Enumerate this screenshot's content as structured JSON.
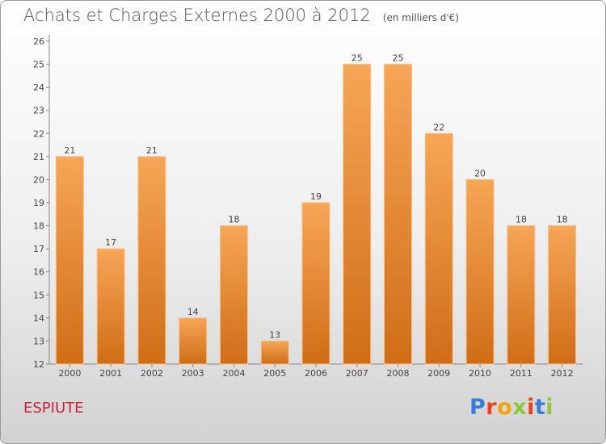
{
  "title": "Achats et Charges Externes 2000 à 2012",
  "subtitle": "(en milliers d'€)",
  "commune": "ESPIUTE",
  "logo": {
    "text": "Proxiti",
    "colors": [
      "#3a7dd6",
      "#e8431d",
      "#f2a400",
      "#8cc63f",
      "#e8431d",
      "#3a7dd6",
      "#8cc63f"
    ]
  },
  "colors": {
    "bar_top": "#f6a656",
    "bar_bottom": "#d06d16",
    "commune": "#c8203a"
  },
  "chart_data": {
    "type": "bar",
    "title": "Achats et Charges Externes 2000 à 2012",
    "subtitle": "(en milliers d'€)",
    "categories": [
      "2000",
      "2001",
      "2002",
      "2003",
      "2004",
      "2005",
      "2006",
      "2007",
      "2008",
      "2009",
      "2010",
      "2011",
      "2012"
    ],
    "values": [
      21,
      17,
      21,
      14,
      18,
      13,
      19,
      25,
      25,
      22,
      20,
      18,
      18
    ],
    "ylim": [
      12,
      26
    ],
    "yticks": [
      12,
      13,
      14,
      15,
      16,
      17,
      18,
      19,
      20,
      21,
      22,
      23,
      24,
      25,
      26
    ],
    "grid": false,
    "data_labels": true
  }
}
